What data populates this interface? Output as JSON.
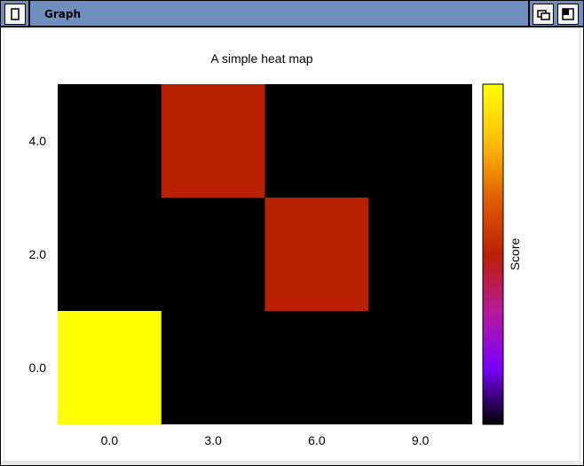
{
  "window": {
    "title": "Graph"
  },
  "chart_data": {
    "type": "heatmap",
    "title": "A simple heat map",
    "xlabel": "",
    "ylabel": "",
    "xlim": [
      -1.5,
      10.5
    ],
    "ylim": [
      -1,
      5
    ],
    "x_ticks": [
      "0.0",
      "3.0",
      "6.0",
      "9.0"
    ],
    "x_tick_values": [
      0,
      3,
      6,
      9
    ],
    "y_ticks": [
      "0.0",
      "2.0",
      "4.0"
    ],
    "y_tick_values": [
      0,
      2,
      4
    ],
    "colorbar": {
      "label": "Score",
      "colormap": [
        "#000000",
        "#7a00ff",
        "#b81a9a",
        "#ba2000",
        "#e06000",
        "#ffc000",
        "#ffff00"
      ]
    },
    "background_value_color": "#000000",
    "cells": [
      {
        "x": 0,
        "y": 0,
        "color": "#ffff00"
      },
      {
        "x": 3,
        "y": 4,
        "color": "#b82000"
      },
      {
        "x": 6,
        "y": 2,
        "color": "#b82000"
      }
    ],
    "cell_width": 3,
    "cell_height": 2,
    "grid": false
  },
  "colors": {
    "titlebar": "#6f8fbf",
    "window_bg": "#ffffff"
  }
}
